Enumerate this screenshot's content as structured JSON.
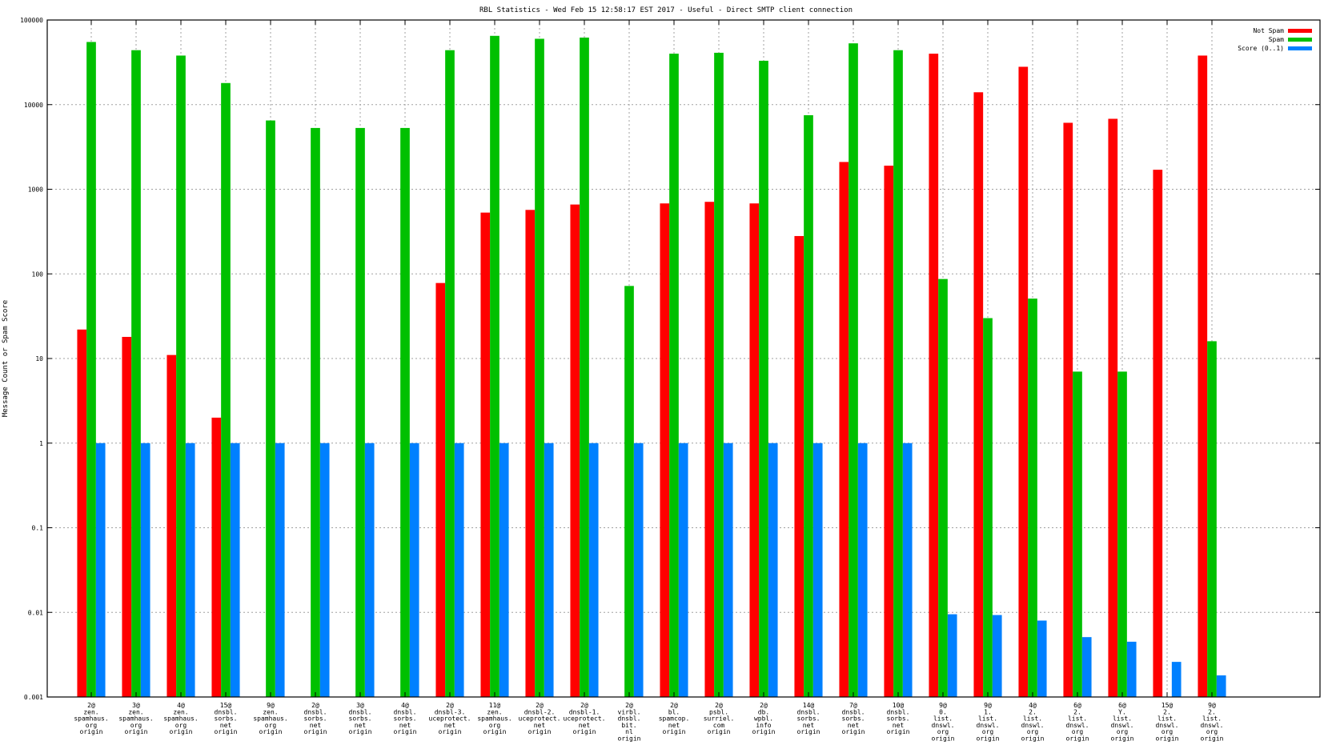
{
  "chart_data": {
    "type": "bar",
    "title": "RBL Statistics - Wed Feb 15 12:58:17 EST 2017 - Useful - Direct SMTP client connection",
    "xlabel": "",
    "ylabel": "Message Count or Spam Score",
    "yscale": "log",
    "ylim": [
      0.001,
      100000
    ],
    "yticks": [
      "0.001",
      "0.01",
      "0.1",
      "1",
      "10",
      "100",
      "1000",
      "10000",
      "100000"
    ],
    "grid": true,
    "legend_position": "top-right",
    "categories": [
      [
        "2@",
        "zen.",
        "spamhaus.",
        "org",
        "origin"
      ],
      [
        "3@",
        "zen.",
        "spamhaus.",
        "org",
        "origin"
      ],
      [
        "4@",
        "zen.",
        "spamhaus.",
        "org",
        "origin"
      ],
      [
        "15@",
        "dnsbl.",
        "sorbs.",
        "net",
        "origin"
      ],
      [
        "9@",
        "zen.",
        "spamhaus.",
        "org",
        "origin"
      ],
      [
        "2@",
        "dnsbl.",
        "sorbs.",
        "net",
        "origin"
      ],
      [
        "3@",
        "dnsbl.",
        "sorbs.",
        "net",
        "origin"
      ],
      [
        "4@",
        "dnsbl.",
        "sorbs.",
        "net",
        "origin"
      ],
      [
        "2@",
        "dnsbl-3.",
        "uceprotect.",
        "net",
        "origin"
      ],
      [
        "11@",
        "zen.",
        "spamhaus.",
        "org",
        "origin"
      ],
      [
        "2@",
        "dnsbl-2.",
        "uceprotect.",
        "net",
        "origin"
      ],
      [
        "2@",
        "dnsbl-1.",
        "uceprotect.",
        "net",
        "origin"
      ],
      [
        "2@",
        "virbl.",
        "dnsbl.",
        "bit.",
        "nl",
        "origin"
      ],
      [
        "2@",
        "bl.",
        "spamcop.",
        "net",
        "origin"
      ],
      [
        "2@",
        "psbl.",
        "surriel.",
        "com",
        "origin"
      ],
      [
        "2@",
        "db.",
        "wpbl.",
        "info",
        "origin"
      ],
      [
        "14@",
        "dnsbl.",
        "sorbs.",
        "net",
        "origin"
      ],
      [
        "7@",
        "dnsbl.",
        "sorbs.",
        "net",
        "origin"
      ],
      [
        "10@",
        "dnsbl.",
        "sorbs.",
        "net",
        "origin"
      ],
      [
        "9@",
        "0.",
        "list.",
        "dnswl.",
        "org",
        "origin"
      ],
      [
        "9@",
        "1.",
        "list.",
        "dnswl.",
        "org",
        "origin"
      ],
      [
        "4@",
        "2.",
        "list.",
        "dnswl.",
        "org",
        "origin"
      ],
      [
        "6@",
        "2.",
        "list.",
        "dnswl.",
        "org",
        "origin"
      ],
      [
        "6@",
        "Y.",
        "list.",
        "dnswl.",
        "org",
        "origin"
      ],
      [
        "15@",
        "2.",
        "list.",
        "dnswl.",
        "org",
        "origin"
      ],
      [
        "9@",
        "2.",
        "list.",
        "dnswl.",
        "org",
        "origin"
      ]
    ],
    "series": [
      {
        "name": "Not Spam",
        "color": "#ff0000",
        "values": [
          22,
          18,
          11,
          2,
          null,
          null,
          null,
          null,
          78,
          530,
          570,
          660,
          null,
          680,
          710,
          680,
          280,
          2100,
          1900,
          40000,
          14000,
          28000,
          6100,
          6800,
          1700,
          38000
        ]
      },
      {
        "name": "Spam",
        "color": "#00c000",
        "values": [
          55000,
          44000,
          38000,
          18000,
          6500,
          5300,
          5300,
          5300,
          44000,
          65000,
          60000,
          62000,
          72,
          40000,
          41000,
          33000,
          7500,
          53000,
          44000,
          87,
          30,
          51,
          7,
          7,
          null,
          16
        ]
      },
      {
        "name": "Score (0..1)",
        "color": "#0080ff",
        "values": [
          1,
          1,
          1,
          1,
          1,
          1,
          1,
          1,
          1,
          1,
          1,
          1,
          1,
          1,
          1,
          1,
          1,
          1,
          1,
          0.0095,
          0.0093,
          0.008,
          0.0051,
          0.0045,
          0.0026,
          0.0018
        ]
      }
    ]
  }
}
